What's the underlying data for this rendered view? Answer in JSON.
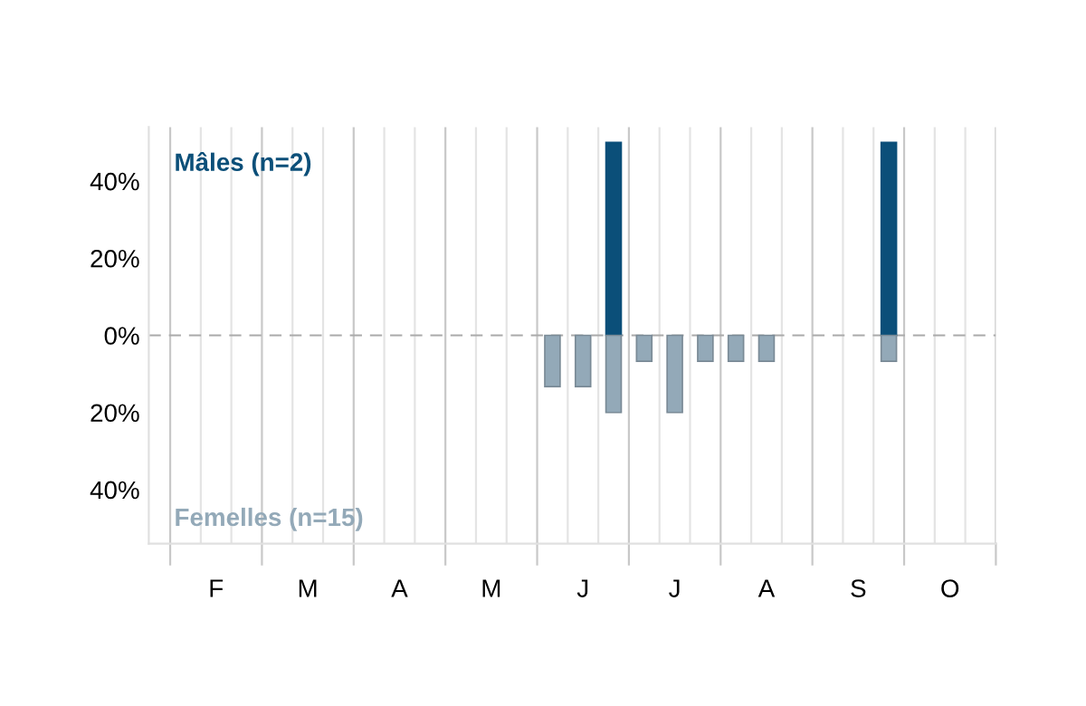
{
  "chart_data": {
    "type": "bar",
    "categories": [
      null,
      "F",
      null,
      null,
      "M",
      null,
      null,
      "A",
      null,
      null,
      "M",
      null,
      null,
      "J",
      null,
      null,
      "J",
      null,
      null,
      "A",
      null,
      null,
      "S",
      null,
      null,
      "O",
      null
    ],
    "series": [
      {
        "name": "Mâles (n=2)",
        "color": "#0b4f79",
        "values": [
          null,
          null,
          null,
          null,
          null,
          null,
          null,
          null,
          null,
          null,
          null,
          null,
          null,
          null,
          50,
          null,
          null,
          null,
          null,
          null,
          null,
          null,
          null,
          50,
          null,
          null,
          null
        ]
      },
      {
        "name": "Femelles (n=15)",
        "color": "#93a9b8",
        "values": [
          null,
          null,
          null,
          null,
          null,
          null,
          null,
          null,
          null,
          null,
          null,
          null,
          -13.3,
          -13.3,
          -20,
          -6.7,
          -20,
          -6.7,
          -6.7,
          -6.7,
          null,
          null,
          null,
          -6.7,
          null,
          null,
          null
        ]
      }
    ],
    "ylim": [
      -54,
      54
    ],
    "yticks": [
      {
        "value": -40,
        "label": "40%"
      },
      {
        "value": -20,
        "label": "20%"
      },
      {
        "value": 0,
        "label": "0%"
      },
      {
        "value": 20,
        "label": "20%"
      },
      {
        "value": 40,
        "label": "40%"
      }
    ],
    "ref_lines": [
      {
        "axis": "y",
        "value": 0,
        "line_style": "dashed",
        "color": "#aaaaaa"
      }
    ],
    "grid": "x",
    "legend": false
  }
}
